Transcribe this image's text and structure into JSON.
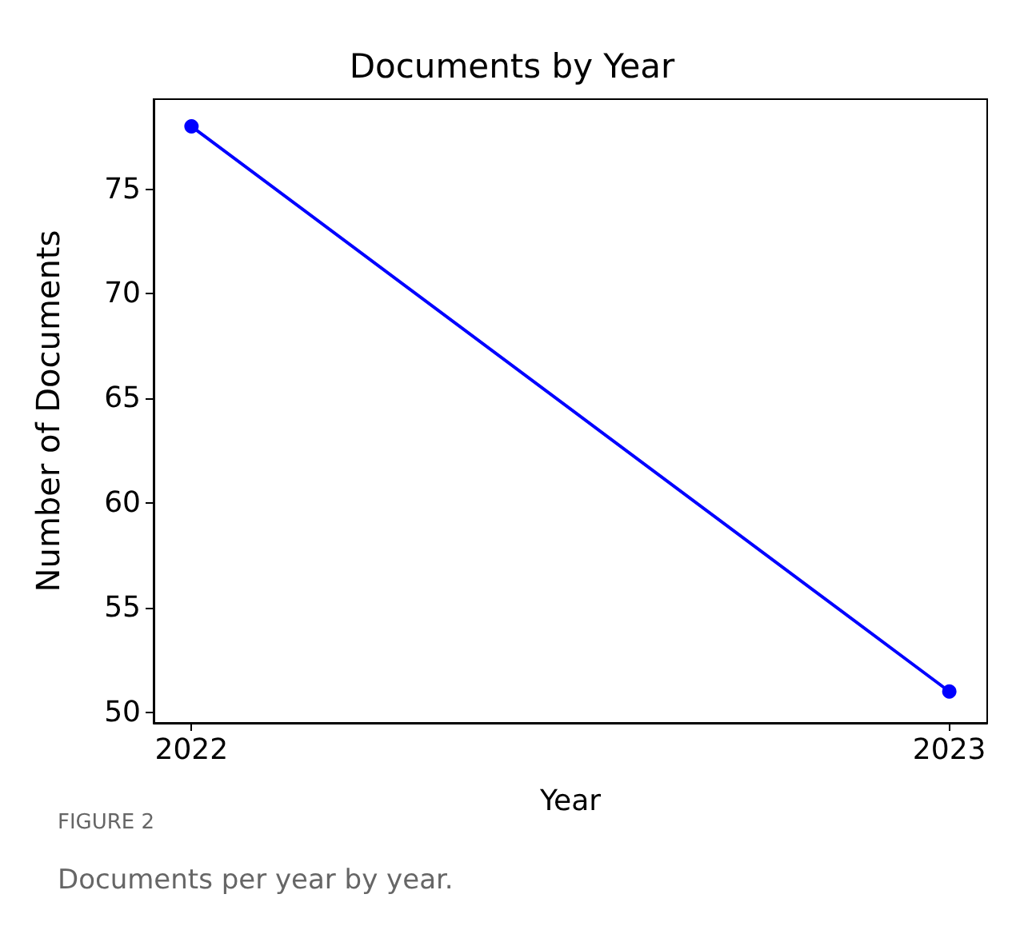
{
  "chart_data": {
    "type": "line",
    "title": "Documents by Year",
    "xlabel": "Year",
    "ylabel": "Number of Documents",
    "annotations": [
      "FIGURE 2",
      "Documents per year by year."
    ],
    "x": [
      2022,
      2023
    ],
    "series": [
      {
        "color": "#0000ff",
        "values": [
          78,
          51
        ]
      }
    ],
    "xlim": [
      2021.95,
      2023.05
    ],
    "xticks": [
      2022,
      2023
    ],
    "ylim": [
      49.5,
      79.3
    ],
    "yticks": [
      50,
      55,
      60,
      65,
      70,
      75
    ],
    "grid": false,
    "marker": "circle",
    "line_style": "solid"
  }
}
